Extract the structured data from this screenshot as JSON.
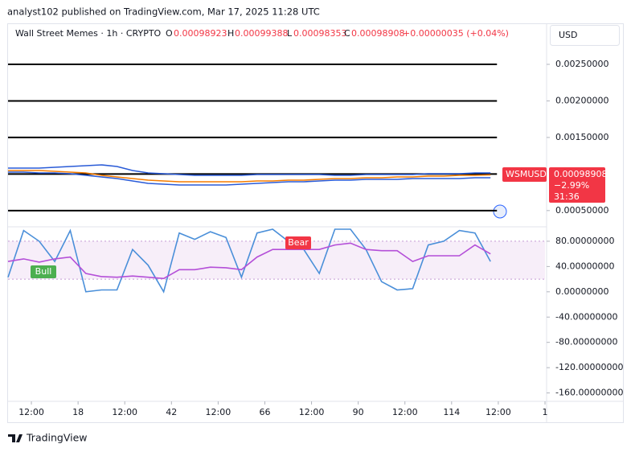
{
  "header": {
    "publisher": "analyst102 published on TradingView.com, Mar 17, 2025 11:28 UTC",
    "symbol": "Wall Street Memes · 1h · CRYPTO",
    "open_label": "O",
    "open": "0.00098923",
    "high_label": "H",
    "high": "0.00099388",
    "low_label": "L",
    "low": "0.00098353",
    "close_label": "C",
    "close": "0.00098908",
    "change": "+0.00000035 (+0.04%)",
    "currency": "USD",
    "ticker": "WSMUSD",
    "last_price": "0.00098908",
    "day_change": "−2.99%",
    "countdown": "31:36",
    "footer": "TradingView"
  },
  "chart_data": [
    {
      "type": "line",
      "x": [
        0,
        4,
        8,
        12,
        16,
        20,
        24,
        28,
        32,
        36,
        40,
        44,
        48,
        52,
        56,
        60,
        64,
        68,
        72,
        76,
        80,
        84,
        88,
        92,
        96,
        100,
        104,
        108,
        112,
        116,
        120,
        124
      ],
      "series": [
        {
          "color": "#2a5bd7",
          "values": [
            0.001081,
            0.001081,
            0.001081,
            0.001092,
            0.001103,
            0.001114,
            0.001125,
            0.001103,
            0.001048,
            0.001015,
            0.001004,
            0.000993,
            0.000982,
            0.000982,
            0.000982,
            0.000982,
            0.000993,
            0.000993,
            0.000993,
            0.000993,
            0.000993,
            0.000982,
            0.000982,
            0.000993,
            0.000993,
            0.000993,
            0.000993,
            0.001004,
            0.001004,
            0.001004,
            0.001015,
            0.001015
          ]
        },
        {
          "color": "#2a5bd7",
          "values": [
            0.001026,
            0.001026,
            0.001015,
            0.001015,
            0.001004,
            0.000982,
            0.00096,
            0.000938,
            0.000905,
            0.000872,
            0.000861,
            0.00085,
            0.00085,
            0.00085,
            0.00085,
            0.000861,
            0.000872,
            0.000883,
            0.000894,
            0.000894,
            0.000905,
            0.000916,
            0.000916,
            0.000927,
            0.000927,
            0.000927,
            0.000938,
            0.000938,
            0.000938,
            0.000938,
            0.000949,
            0.000949
          ]
        },
        {
          "color": "#f57c00",
          "values": [
            0.001048,
            0.001048,
            0.001048,
            0.001037,
            0.001026,
            0.001015,
            0.000982,
            0.00096,
            0.000938,
            0.000916,
            0.000905,
            0.000894,
            0.000894,
            0.000894,
            0.000894,
            0.000894,
            0.000905,
            0.000905,
            0.000916,
            0.000916,
            0.000927,
            0.000938,
            0.000938,
            0.000949,
            0.000949,
            0.00096,
            0.00096,
            0.000971,
            0.000971,
            0.000982,
            0.000982,
            0.00098908
          ]
        }
      ],
      "levels": [
        0.0025,
        0.002,
        0.0015,
        0.001,
        0.0005
      ],
      "xlim": [
        0,
        138
      ],
      "ylim": [
        0.0003,
        0.00305
      ],
      "yticks": [
        {
          "value": 0.0025,
          "label": "0.00250000"
        },
        {
          "value": 0.002,
          "label": "0.00200000"
        },
        {
          "value": 0.0015,
          "label": "0.00150000"
        },
        {
          "value": 0.0005,
          "label": "0.00050000"
        }
      ]
    },
    {
      "type": "line",
      "x": [
        0,
        4,
        8,
        12,
        16,
        20,
        24,
        28,
        32,
        36,
        40,
        44,
        48,
        52,
        56,
        60,
        64,
        68,
        72,
        76,
        80,
        84,
        88,
        92,
        96,
        100,
        104,
        108,
        112,
        116,
        120,
        124
      ],
      "series": [
        {
          "color": "#4a8fd9",
          "values": [
            23,
            97,
            80,
            48,
            97,
            0,
            3,
            3,
            67,
            42,
            0,
            93,
            83,
            95,
            86,
            23,
            93,
            99,
            80,
            67,
            29,
            99,
            99,
            67,
            16,
            3,
            5,
            74,
            80,
            97,
            93,
            48
          ]
        },
        {
          "color": "#b44fd8",
          "values": [
            48,
            52,
            47,
            52,
            55,
            29,
            24,
            23,
            25,
            23,
            21,
            35,
            35,
            39,
            38,
            35,
            55,
            67,
            67,
            67,
            67,
            74,
            77,
            67,
            65,
            65,
            48,
            57,
            57,
            57,
            74,
            60
          ]
        }
      ],
      "band": [
        20,
        80
      ],
      "annotations": [
        "Bull",
        "Bear"
      ],
      "xlim": [
        0,
        138
      ],
      "ylim": [
        -172,
        99
      ],
      "yticks": [
        {
          "value": 80,
          "label": "80.00000000"
        },
        {
          "value": 40,
          "label": "40.00000000"
        },
        {
          "value": 0,
          "label": "0.00000000"
        },
        {
          "value": -40,
          "label": "-40.00000000"
        },
        {
          "value": -80,
          "label": "-80.00000000"
        },
        {
          "value": -120,
          "label": "-120.00000000"
        },
        {
          "value": -160,
          "label": "-160.00000000"
        }
      ],
      "xticks": [
        {
          "value": 6,
          "label": "12:00"
        },
        18,
        {
          "value": 30,
          "label": "12:00"
        },
        42,
        {
          "value": 54,
          "label": "12:00"
        },
        66,
        {
          "value": 78,
          "label": "12:00"
        },
        90,
        {
          "value": 102,
          "label": "12:00"
        },
        114,
        {
          "value": 126,
          "label": "12:00"
        },
        {
          "value": 138,
          "label": "1"
        }
      ]
    }
  ]
}
